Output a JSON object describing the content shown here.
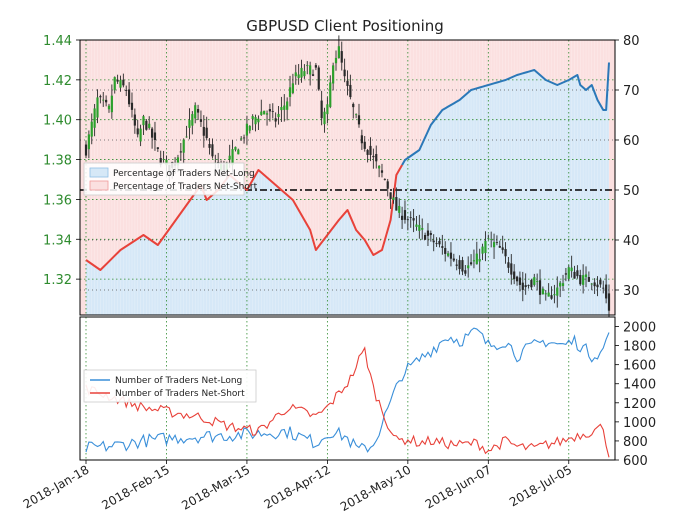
{
  "chart_data": [
    {
      "type": "candlestick+area",
      "title": "GBPUSD Client Positioning",
      "x_ticks": [
        "2018-Jan-18",
        "2018-Feb-15",
        "2018-Mar-15",
        "2018-Apr-12",
        "2018-May-10",
        "2018-Jun-07",
        "2018-Jul-05"
      ],
      "y_left_ticks": [
        "1.32",
        "1.34",
        "1.36",
        "1.38",
        "1.40",
        "1.42",
        "1.44"
      ],
      "y_left_range": [
        1.302,
        1.44
      ],
      "y_right_ticks": [
        "30",
        "40",
        "50",
        "60",
        "70",
        "80"
      ],
      "y_right_range": [
        25,
        80
      ],
      "reference_line": 50,
      "legend": [
        "Percentage of Traders Net-Long",
        "Percentage of Traders Net-Short"
      ],
      "legend_position": "left",
      "colors": {
        "long": "#2b78b8",
        "short": "#e8423a",
        "long_fill": "#d6e8f7",
        "short_fill": "#fbe0e0",
        "candle": "#2a2a2a",
        "candle_up": "#2ca02c",
        "axis_left": "#2e8b2e"
      },
      "pct_long_keyframes": {
        "day": [
          0,
          5,
          12,
          20,
          25,
          30,
          35,
          40,
          42,
          46,
          50,
          56,
          60,
          64,
          68,
          72,
          76,
          78,
          80,
          84,
          88,
          91,
          94,
          97,
          100,
          103,
          106,
          108,
          111,
          116,
          120,
          124,
          130,
          134,
          140,
          146,
          150,
          156,
          160,
          164,
          168,
          171,
          172,
          174,
          176,
          178,
          180,
          182
        ],
        "pct": [
          36,
          34,
          38,
          41,
          39,
          43,
          47,
          51,
          48,
          50,
          53,
          50,
          54,
          52,
          50,
          48,
          44,
          42,
          38,
          41,
          44,
          46,
          42,
          40,
          37,
          38,
          44,
          53,
          56,
          58,
          63,
          66,
          68,
          70,
          71,
          72,
          73,
          74,
          72,
          71,
          72,
          73,
          71,
          70,
          71,
          68,
          66,
          66
        ]
      },
      "pct_long_current_pct": 75.5,
      "price_keyframes": {
        "day": [
          0,
          4,
          8,
          10,
          14,
          18,
          20,
          22,
          26,
          30,
          34,
          38,
          42,
          44,
          48,
          52,
          56,
          58,
          62,
          66,
          70,
          72,
          76,
          80,
          82,
          84,
          86,
          88,
          90,
          92,
          96,
          100,
          104,
          108,
          112,
          116,
          120,
          124,
          128,
          132,
          136,
          140,
          144,
          148,
          152,
          156,
          160,
          164,
          168,
          172,
          176,
          180,
          182
        ],
        "close": [
          1.385,
          1.41,
          1.405,
          1.42,
          1.415,
          1.39,
          1.4,
          1.395,
          1.38,
          1.375,
          1.39,
          1.405,
          1.39,
          1.38,
          1.375,
          1.385,
          1.395,
          1.4,
          1.405,
          1.4,
          1.41,
          1.42,
          1.425,
          1.425,
          1.4,
          1.405,
          1.43,
          1.435,
          1.42,
          1.41,
          1.39,
          1.38,
          1.37,
          1.355,
          1.35,
          1.345,
          1.34,
          1.335,
          1.33,
          1.325,
          1.33,
          1.34,
          1.335,
          1.325,
          1.315,
          1.32,
          1.31,
          1.315,
          1.325,
          1.32,
          1.32,
          1.315,
          1.305
        ]
      }
    },
    {
      "type": "line",
      "series": [
        {
          "name": "Number of Traders Net-Long",
          "color": "#3a8fd9",
          "keyframes": {
            "day": [
              0,
              10,
              20,
              30,
              40,
              50,
              60,
              70,
              80,
              85,
              90,
              95,
              100,
              106,
              110,
              116,
              120,
              126,
              130,
              136,
              140,
              146,
              150,
              156,
              160,
              166,
              170,
              176,
              180,
              182
            ],
            "value": [
              720,
              750,
              800,
              830,
              850,
              860,
              880,
              900,
              780,
              900,
              850,
              700,
              760,
              1200,
              1500,
              1650,
              1750,
              1900,
              1850,
              1950,
              1800,
              1850,
              1700,
              1800,
              1850,
              1800,
              1850,
              1700,
              1750,
              1950
            ]
          }
        },
        {
          "name": "Number of Traders Net-Short",
          "color": "#e8423a",
          "keyframes": {
            "day": [
              0,
              10,
              20,
              30,
              40,
              50,
              60,
              66,
              70,
              76,
              80,
              84,
              88,
              92,
              95,
              97,
              100,
              104,
              108,
              112,
              116,
              120,
              126,
              130,
              136,
              140,
              146,
              150,
              156,
              160,
              166,
              170,
              176,
              180,
              182
            ],
            "value": [
              1350,
              1250,
              1150,
              1100,
              1050,
              950,
              900,
              1050,
              1150,
              1100,
              1050,
              1150,
              1300,
              1450,
              1650,
              1750,
              1350,
              1050,
              800,
              820,
              780,
              800,
              770,
              760,
              780,
              700,
              800,
              740,
              720,
              760,
              800,
              850,
              900,
              950,
              640
            ]
          }
        }
      ],
      "y_ticks": [
        "600",
        "800",
        "1000",
        "1200",
        "1400",
        "1600",
        "1800",
        "2000"
      ],
      "y_range": [
        600,
        2100
      ],
      "legend_position": "left"
    }
  ],
  "texts": {
    "title": "GBPUSD Client Positioning",
    "legend_top_long": "Percentage of Traders Net-Long",
    "legend_top_short": "Percentage of Traders Net-Short",
    "legend_bottom_long": "Number of Traders Net-Long",
    "legend_bottom_short": "Number of Traders Net-Short"
  }
}
